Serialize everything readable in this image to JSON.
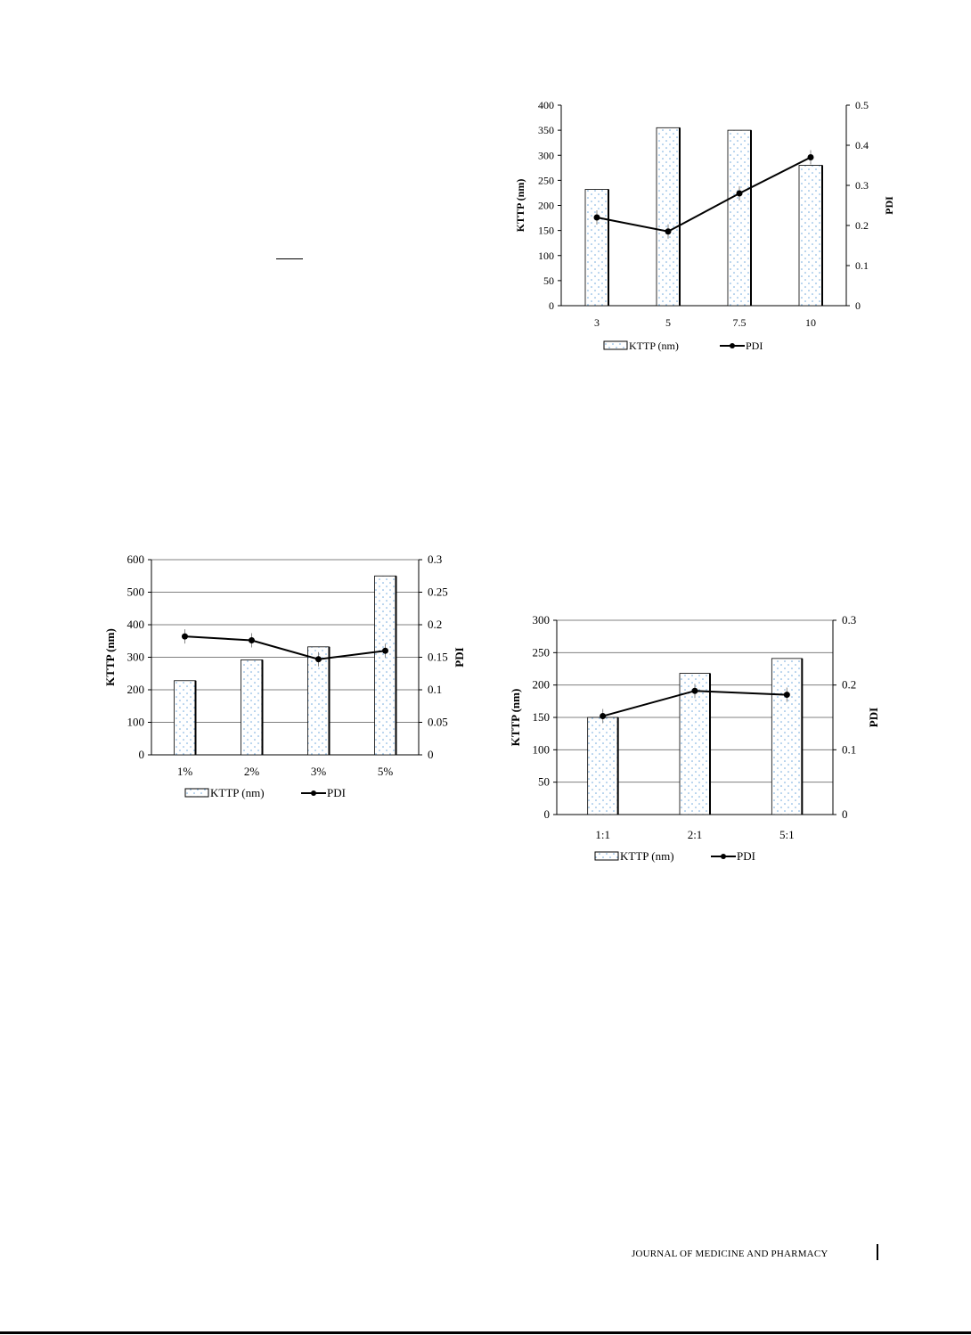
{
  "footer": {
    "journal": "JOURNAL OF MEDICINE AND PHARMACY"
  },
  "colors": {
    "bar_fill": "#ffffff",
    "bar_dots": "#6fa8dc",
    "line": "#000000",
    "grid": "#808080"
  },
  "chart_data": [
    {
      "type": "bar",
      "categories": [
        "3",
        "5",
        "7.5",
        "10"
      ],
      "series": [
        {
          "name": "KTTP (nm)",
          "type": "bar",
          "axis": "left",
          "values": [
            232,
            355,
            350,
            280
          ]
        },
        {
          "name": "PDI",
          "type": "line",
          "axis": "right",
          "values": [
            0.22,
            0.185,
            0.28,
            0.37
          ]
        }
      ],
      "ylabel": "KTTP (nm)",
      "y2label": "PDI",
      "ylim": [
        0,
        400
      ],
      "y2lim": [
        0,
        0.5
      ],
      "yticks": [
        "0",
        "50",
        "100",
        "150",
        "200",
        "250",
        "300",
        "350",
        "400"
      ],
      "y2ticks": [
        "0",
        "0.1",
        "0.2",
        "0.3",
        "0.4",
        "0.5"
      ],
      "grid": false,
      "legend": "bottom"
    },
    {
      "type": "bar",
      "categories": [
        "1%",
        "2%",
        "3%",
        "5%"
      ],
      "series": [
        {
          "name": "KTTP (nm)",
          "type": "bar",
          "axis": "left",
          "values": [
            228,
            292,
            332,
            550
          ]
        },
        {
          "name": "PDI",
          "type": "line",
          "axis": "right",
          "values": [
            0.182,
            0.176,
            0.147,
            0.16
          ]
        }
      ],
      "ylabel": "KTTP (nm)",
      "y2label": "PDI",
      "ylim": [
        0,
        600
      ],
      "y2lim": [
        0,
        0.3
      ],
      "yticks": [
        "0",
        "100",
        "200",
        "300",
        "400",
        "500",
        "600"
      ],
      "y2ticks": [
        "0",
        "0.05",
        "0.1",
        "0.15",
        "0.2",
        "0.25",
        "0.3"
      ],
      "grid": true,
      "legend": "bottom"
    },
    {
      "type": "bar",
      "categories": [
        "1:1",
        "2:1",
        "5:1"
      ],
      "series": [
        {
          "name": "KTTP (nm)",
          "type": "bar",
          "axis": "left",
          "values": [
            150,
            218,
            241
          ]
        },
        {
          "name": "PDI",
          "type": "line",
          "axis": "right",
          "values": [
            0.152,
            0.191,
            0.185
          ]
        }
      ],
      "ylabel": "KTTP (nm)",
      "y2label": "PDI",
      "ylim": [
        0,
        300
      ],
      "y2lim": [
        0,
        0.3
      ],
      "yticks": [
        "0",
        "50",
        "100",
        "150",
        "200",
        "250",
        "300"
      ],
      "y2ticks": [
        "0",
        "0.1",
        "0.2",
        "0.3"
      ],
      "grid": true,
      "legend": "bottom"
    }
  ]
}
